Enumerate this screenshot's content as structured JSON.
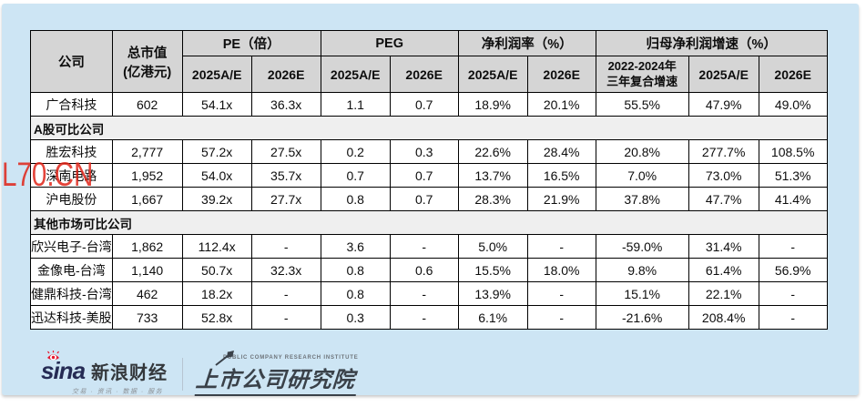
{
  "page": {
    "watermark": "L70.CN",
    "colors": {
      "panel_background": "#cde5f4",
      "header_gray": "#d5d5d5",
      "section_gray": "#efefef",
      "watermark_red": "#e02418",
      "sina_eye_red": "#e6162d",
      "logo_dark": "#3a4149"
    }
  },
  "table": {
    "header": {
      "company": "公司",
      "market_cap": "总市值",
      "market_cap_unit": "(亿港元)",
      "groups": [
        {
          "label": "PE（倍）",
          "cols": [
            "2025A/E",
            "2026E"
          ]
        },
        {
          "label": "PEG",
          "cols": [
            "2025A/E",
            "2026E"
          ]
        },
        {
          "label": "净利润率（%）",
          "cols": [
            "2025A/E",
            "2026E"
          ]
        },
        {
          "label": "归母净利润增速（%）",
          "cols": [
            [
              "2022-2024年",
              "三年复合增速"
            ],
            "2025A/E",
            "2026E"
          ]
        }
      ]
    },
    "rows": [
      {
        "type": "data",
        "cells": [
          "广合科技",
          "602",
          "54.1x",
          "36.3x",
          "1.1",
          "0.7",
          "18.9%",
          "20.1%",
          "55.5%",
          "47.9%",
          "49.0%"
        ]
      },
      {
        "type": "section",
        "label": "A股可比公司"
      },
      {
        "type": "data",
        "cells": [
          "胜宏科技",
          "2,777",
          "57.2x",
          "27.5x",
          "0.2",
          "0.3",
          "22.6%",
          "28.4%",
          "20.8%",
          "277.7%",
          "108.5%"
        ]
      },
      {
        "type": "data",
        "cells": [
          "深南电路",
          "1,952",
          "54.0x",
          "35.7x",
          "0.7",
          "0.7",
          "13.7%",
          "16.5%",
          "7.0%",
          "73.0%",
          "51.3%"
        ]
      },
      {
        "type": "data",
        "cells": [
          "沪电股份",
          "1,667",
          "39.2x",
          "27.7x",
          "0.8",
          "0.7",
          "28.3%",
          "21.9%",
          "37.8%",
          "47.7%",
          "41.4%"
        ]
      },
      {
        "type": "section",
        "label": "其他市场可比公司"
      },
      {
        "type": "data",
        "cells": [
          "欣兴电子-台湾",
          "1,862",
          "112.4x",
          "-",
          "3.6",
          "-",
          "5.0%",
          "-",
          "-59.0%",
          "31.4%",
          "-"
        ]
      },
      {
        "type": "data",
        "cells": [
          "金像电-台湾",
          "1,140",
          "50.7x",
          "32.3x",
          "0.8",
          "0.6",
          "15.5%",
          "18.0%",
          "9.8%",
          "61.4%",
          "56.9%"
        ]
      },
      {
        "type": "data",
        "cells": [
          "健鼎科技-台湾",
          "462",
          "18.2x",
          "-",
          "0.8",
          "-",
          "13.9%",
          "-",
          "15.1%",
          "22.1%",
          "-"
        ]
      },
      {
        "type": "data",
        "cells": [
          "迅达科技-美股",
          "733",
          "52.8x",
          "-",
          "0.3",
          "-",
          "6.1%",
          "-",
          "-21.6%",
          "208.4%",
          "-"
        ]
      }
    ]
  },
  "footer": {
    "sina_brand": "sina",
    "sina_name": "新浪财经",
    "sina_tagline": "交易 · 资讯 · 数据 · 服务",
    "institute_subtitle": "PUBLIC COMPANY RESEARCH INSTITUTE",
    "institute_name": "上市公司研究院"
  }
}
